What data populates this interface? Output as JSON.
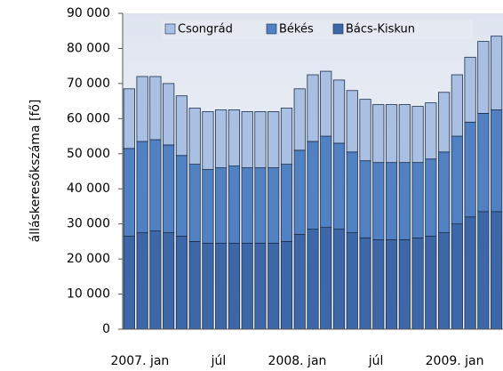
{
  "chart_data": {
    "type": "bar",
    "stacked": true,
    "y_label": "álláskeresőkszáma [fő]",
    "categories": [
      "2007. jan",
      null,
      null,
      null,
      null,
      null,
      "júl",
      null,
      null,
      null,
      null,
      null,
      "2008. jan",
      null,
      null,
      null,
      null,
      null,
      "júl",
      null,
      null,
      null,
      null,
      null,
      "2009. jan",
      null,
      null,
      null,
      null
    ],
    "series": [
      {
        "name": "Bács-Kiskun",
        "color": "#3d67a6",
        "values": [
          26500,
          27500,
          28000,
          27500,
          26500,
          25000,
          24500,
          24500,
          24500,
          24500,
          24500,
          24500,
          25000,
          27000,
          28500,
          29000,
          28500,
          27500,
          26000,
          25500,
          25500,
          25500,
          26000,
          26500,
          27500,
          30000,
          32000,
          33500,
          33500
        ]
      },
      {
        "name": "Békés",
        "color": "#5181c2",
        "values": [
          25000,
          26000,
          26000,
          25000,
          23000,
          22000,
          21000,
          21500,
          22000,
          21500,
          21500,
          21500,
          22000,
          24000,
          25000,
          26000,
          24500,
          23000,
          22000,
          22000,
          22000,
          22000,
          21500,
          22000,
          23000,
          25000,
          27000,
          28000,
          29000
        ]
      },
      {
        "name": "Csongrád",
        "color": "#a9c0e2",
        "values": [
          17000,
          18500,
          18000,
          17500,
          17000,
          16000,
          16500,
          16500,
          16000,
          16000,
          16000,
          16000,
          16000,
          17500,
          19000,
          18500,
          18000,
          17500,
          17500,
          16500,
          16500,
          16500,
          16000,
          16000,
          17000,
          17500,
          18500,
          20500,
          21000
        ]
      }
    ],
    "ylim": [
      0,
      90000
    ],
    "yticks": [
      0,
      {
        "value": 10000,
        "label": "10 000"
      },
      {
        "value": 20000,
        "label": "20 000"
      },
      {
        "value": 30000,
        "label": "30 000"
      },
      {
        "value": 40000,
        "label": "40 000"
      },
      {
        "value": 50000,
        "label": "50 000"
      },
      {
        "value": 60000,
        "label": "60 000"
      },
      {
        "value": 70000,
        "label": "70 000"
      },
      {
        "value": 80000,
        "label": "80 000"
      },
      {
        "value": 90000,
        "label": "90 000"
      }
    ],
    "legend": "top"
  }
}
